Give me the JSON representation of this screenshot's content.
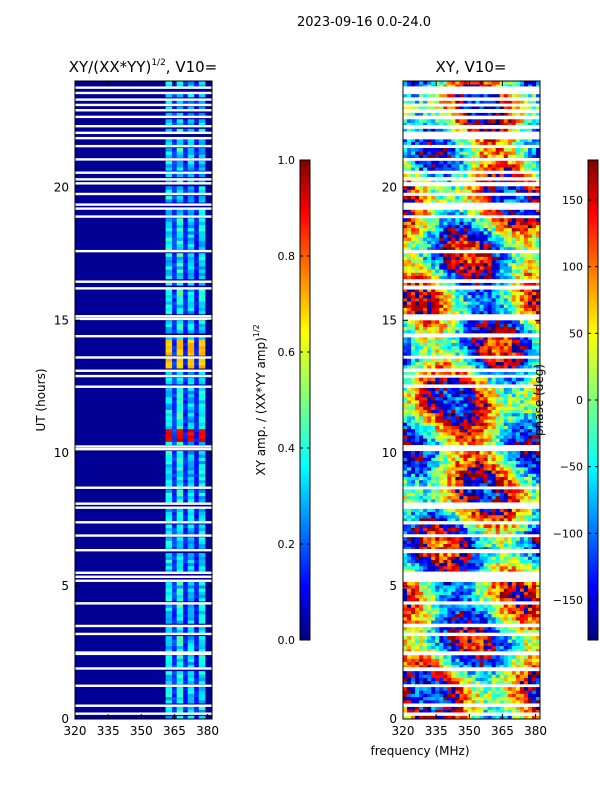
{
  "chart_data": {
    "suptitle": "2023-09-16 0.0-24.0",
    "xlabel": "frequency (MHz)",
    "ylabel": "UT (hours)",
    "panels": [
      {
        "type": "heatmap",
        "title_main": "XY/(XX*YY)",
        "title_exp": "1/2",
        "title_tail": ", V10=",
        "xlim": [
          320,
          382
        ],
        "ylim": [
          0,
          24
        ],
        "xticks": [
          "320",
          "335",
          "350",
          "365",
          "380"
        ],
        "xtick_values": [
          320,
          335,
          350,
          365,
          380
        ],
        "yticks": [
          "0",
          "5",
          "10",
          "15",
          "20"
        ],
        "ytick_values": [
          0,
          5,
          10,
          15,
          20
        ],
        "colorbar": {
          "label_main": "XY amp. / (XX*YY amp)",
          "label_exp": "1/2",
          "range": [
            0,
            1
          ],
          "ticks": [
            "0.0",
            "0.2",
            "0.4",
            "0.6",
            "0.8",
            "1.0"
          ],
          "tick_values": [
            0.0,
            0.2,
            0.4,
            0.6,
            0.8,
            1.0
          ]
        }
      },
      {
        "type": "heatmap",
        "title_main": "XY, V10=",
        "xlim": [
          320,
          382
        ],
        "ylim": [
          0,
          24
        ],
        "xticks": [
          "320",
          "335",
          "350",
          "365",
          "380"
        ],
        "xtick_values": [
          320,
          335,
          350,
          365,
          380
        ],
        "yticks": [
          "0",
          "5",
          "10",
          "15",
          "20"
        ],
        "ytick_values": [
          0,
          5,
          10,
          15,
          20
        ],
        "colorbar": {
          "label": "phase (deg)",
          "range": [
            -180,
            180
          ],
          "ticks": [
            "−150",
            "−100",
            "−50",
            "0",
            "50",
            "100",
            "150"
          ],
          "tick_values": [
            -150,
            -100,
            -50,
            0,
            50,
            100,
            150
          ]
        }
      }
    ],
    "gap_hours": [
      0.2,
      0.5,
      1.25,
      1.9,
      2.45,
      2.5,
      3.2,
      3.5,
      4.35,
      5.2,
      5.35,
      5.5,
      6.35,
      6.9,
      7.4,
      7.95,
      8.1,
      8.7,
      10.15,
      10.25,
      12.5,
      12.9,
      13.1,
      13.6,
      14.4,
      15.05,
      15.15,
      16.2,
      16.45,
      17.6,
      18.9,
      19.2,
      19.35,
      19.75,
      20.15,
      20.3,
      20.55,
      21.05,
      21.55,
      21.85,
      22.05,
      22.3,
      22.65,
      22.9,
      23.1,
      23.3,
      23.55,
      23.75
    ],
    "amp_freq_bands": [
      {
        "f0": 361,
        "f1": 364,
        "level": 0.35
      },
      {
        "f0": 364,
        "f1": 366,
        "level": 0.18
      },
      {
        "f0": 366,
        "f1": 369,
        "level": 0.38
      },
      {
        "f0": 369,
        "f1": 371,
        "level": 0.15
      },
      {
        "f0": 371,
        "f1": 374,
        "level": 0.32
      },
      {
        "f0": 374,
        "f1": 376,
        "level": 0.14
      },
      {
        "f0": 376,
        "f1": 379,
        "level": 0.34
      }
    ],
    "amp_hot_bands": [
      {
        "t0": 10.4,
        "t1": 11.0,
        "level": 0.95
      },
      {
        "t0": 13.0,
        "t1": 14.3,
        "level": 0.72
      }
    ]
  }
}
